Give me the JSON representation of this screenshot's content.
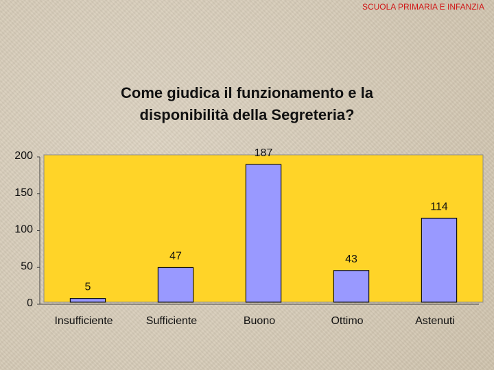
{
  "header": {
    "label": "SCUOLA PRIMARIA E INFANZIA"
  },
  "chart_data": {
    "type": "bar",
    "title_lines": [
      "Come giudica il funzionamento e la",
      "disponibilità della Segreteria?"
    ],
    "categories": [
      "Insufficiente",
      "Sufficiente",
      "Buono",
      "Ottimo",
      "Astenuti"
    ],
    "values": [
      5,
      47,
      187,
      43,
      114
    ],
    "data_labels": [
      "5",
      "47",
      "187",
      "43",
      "114"
    ],
    "ylim": [
      0,
      200
    ],
    "yticks": [
      0,
      50,
      100,
      150,
      200
    ],
    "grid": false,
    "legend": "none",
    "colors": {
      "plot_background": "#ffd428",
      "bar_fill": "#9999ff",
      "bar_stroke": "#111111"
    }
  }
}
